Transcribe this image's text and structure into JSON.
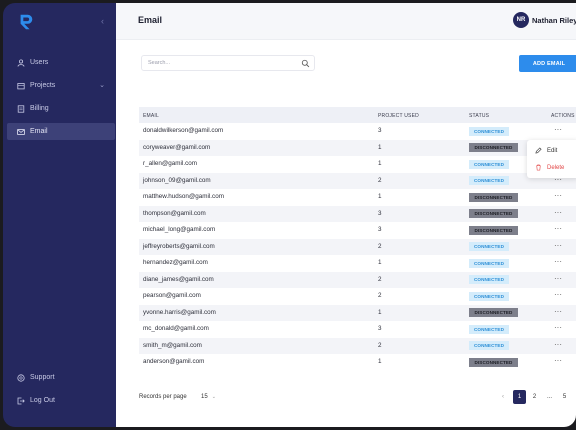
{
  "sidebar": {
    "logo_letter": "R",
    "collapse_glyph": "‹",
    "items": [
      {
        "label": "Users",
        "icon": "user-icon"
      },
      {
        "label": "Projects",
        "icon": "folder-icon"
      },
      {
        "label": "Billing",
        "icon": "receipt-icon"
      },
      {
        "label": "Email",
        "icon": "mail-icon"
      }
    ],
    "bottom_items": [
      {
        "label": "Support",
        "icon": "help-icon"
      },
      {
        "label": "Log Out",
        "icon": "logout-icon"
      }
    ]
  },
  "header": {
    "title": "Email",
    "avatar_initials": "NR",
    "user_name": "Nathan Riley"
  },
  "toolbar": {
    "search_placeholder": "Search...",
    "add_label": "ADD EMAIL"
  },
  "table": {
    "columns": [
      "EMAIL",
      "PROJECT USED",
      "STATUS",
      "ACTIONS"
    ],
    "rows": [
      {
        "email": "donaldwilkerson@gamil.com",
        "projects": "3",
        "status": "CONNECTED"
      },
      {
        "email": "coryweaver@gamil.com",
        "projects": "1",
        "status": "DISCONNECTED"
      },
      {
        "email": "r_allen@gamil.com",
        "projects": "1",
        "status": "CONNECTED"
      },
      {
        "email": "johnson_09@gamil.com",
        "projects": "2",
        "status": "CONNECTED"
      },
      {
        "email": "matthew.hudson@gamil.com",
        "projects": "1",
        "status": "DISCONNECTED"
      },
      {
        "email": "thompson@gamil.com",
        "projects": "3",
        "status": "DISCONNECTED"
      },
      {
        "email": "michael_long@gamil.com",
        "projects": "3",
        "status": "DISCONNECTED"
      },
      {
        "email": "jeffreyroberts@gamil.com",
        "projects": "2",
        "status": "CONNECTED"
      },
      {
        "email": "hernandez@gamil.com",
        "projects": "1",
        "status": "CONNECTED"
      },
      {
        "email": "diane_james@gamil.com",
        "projects": "2",
        "status": "CONNECTED"
      },
      {
        "email": "pearson@gamil.com",
        "projects": "2",
        "status": "CONNECTED"
      },
      {
        "email": "yvonne.harris@gamil.com",
        "projects": "1",
        "status": "DISCONNECTED"
      },
      {
        "email": "mc_donald@gamil.com",
        "projects": "3",
        "status": "CONNECTED"
      },
      {
        "email": "smith_m@gamil.com",
        "projects": "2",
        "status": "CONNECTED"
      },
      {
        "email": "anderson@gamil.com",
        "projects": "1",
        "status": "DISCONNECTED"
      }
    ],
    "actions_glyph": "···"
  },
  "row_menu": {
    "edit_label": "Edit",
    "delete_label": "Delete"
  },
  "footer": {
    "records_label": "Records per page",
    "per_page_value": "15",
    "pages": [
      "1",
      "2",
      "...",
      "5"
    ],
    "current_page": "1",
    "prev_glyph": "‹"
  },
  "colors": {
    "sidebar": "#25285f",
    "accent": "#2d8cec",
    "connected_bg": "#d4ecfb",
    "disconnected_bg": "#7d7f8b",
    "delete": "#e24646"
  }
}
